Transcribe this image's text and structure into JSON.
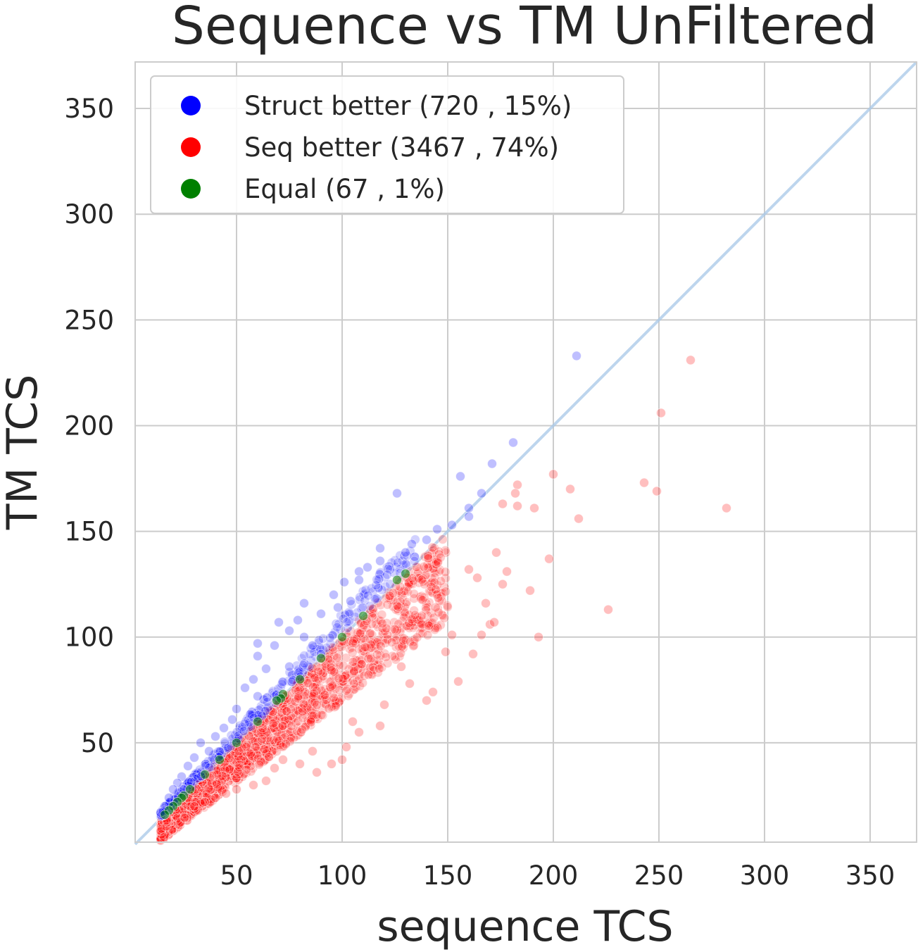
{
  "chart_data": {
    "type": "scatter",
    "title": "Sequence vs TM UnFiltered",
    "xlabel": "sequence TCS",
    "ylabel": "TM TCS",
    "xlim": [
      2,
      372
    ],
    "ylim": [
      3,
      372
    ],
    "xticks": [
      50,
      100,
      150,
      200,
      250,
      300,
      350
    ],
    "yticks": [
      50,
      100,
      150,
      200,
      250,
      300,
      350
    ],
    "grid": true,
    "legend_position": "top-left",
    "diagonal_line": {
      "from": [
        2,
        2
      ],
      "to": [
        372,
        372
      ],
      "color": "#a8c8e8"
    },
    "colors": {
      "struct": "#0000ff",
      "seq": "#ff0000",
      "equal": "#008000"
    },
    "series": [
      {
        "name": "Struct better (720 , 15%)",
        "color": "#0000ff",
        "points": [
          [
            211,
            233
          ],
          [
            181,
            192
          ],
          [
            171,
            182
          ],
          [
            156,
            176
          ],
          [
            126,
            168
          ],
          [
            166,
            168
          ],
          [
            160,
            161
          ],
          [
            160,
            157
          ],
          [
            152,
            153
          ],
          [
            145,
            151
          ],
          [
            140,
            146
          ],
          [
            133,
            144
          ],
          [
            130,
            140
          ],
          [
            118,
            142
          ],
          [
            118,
            136
          ],
          [
            112,
            133
          ],
          [
            108,
            131
          ],
          [
            101,
            126
          ],
          [
            108,
            127
          ],
          [
            96,
            120
          ],
          [
            104,
            117
          ],
          [
            98,
            114
          ],
          [
            82,
            116
          ],
          [
            90,
            111
          ],
          [
            79,
            108
          ],
          [
            70,
            107
          ],
          [
            75,
            103
          ],
          [
            82,
            100
          ],
          [
            60,
            97
          ],
          [
            68,
            96
          ],
          [
            86,
            96
          ],
          [
            90,
            92
          ],
          [
            60,
            91
          ],
          [
            75,
            86
          ],
          [
            64,
            85
          ],
          [
            58,
            80
          ],
          [
            54,
            76
          ],
          [
            60,
            72
          ],
          [
            50,
            66
          ],
          [
            48,
            61
          ],
          [
            44,
            57
          ],
          [
            40,
            53
          ],
          [
            33,
            50
          ],
          [
            37,
            46
          ],
          [
            30,
            43
          ],
          [
            27,
            39
          ],
          [
            24,
            34
          ],
          [
            22,
            31
          ],
          [
            20,
            28
          ],
          [
            18,
            24
          ],
          [
            16,
            20
          ],
          [
            14,
            17
          ]
        ],
        "cloud": {
          "x_range": [
            14,
            135
          ],
          "offset_range": [
            1,
            14
          ],
          "count": 340,
          "alpha": 0.18
        }
      },
      {
        "name": "Seq better (3467 , 74%)",
        "color": "#ff0000",
        "points": [
          [
            265,
            231
          ],
          [
            251,
            206
          ],
          [
            200,
            177
          ],
          [
            183,
            172
          ],
          [
            243,
            173
          ],
          [
            249,
            169
          ],
          [
            208,
            170
          ],
          [
            182,
            168
          ],
          [
            176,
            163
          ],
          [
            183,
            162
          ],
          [
            191,
            161
          ],
          [
            282,
            161
          ],
          [
            212,
            156
          ],
          [
            173,
            140
          ],
          [
            198,
            137
          ],
          [
            178,
            131
          ],
          [
            189,
            122
          ],
          [
            176,
            125
          ],
          [
            160,
            132
          ],
          [
            164,
            128
          ],
          [
            168,
            116
          ],
          [
            170,
            106
          ],
          [
            166,
            101
          ],
          [
            172,
            107
          ],
          [
            152,
            101
          ],
          [
            162,
            92
          ],
          [
            193,
            100
          ],
          [
            226,
            113
          ],
          [
            149,
            93
          ],
          [
            155,
            79
          ],
          [
            128,
            86
          ],
          [
            132,
            78
          ],
          [
            140,
            70
          ],
          [
            143,
            74
          ],
          [
            120,
            68
          ],
          [
            118,
            58
          ],
          [
            105,
            60
          ],
          [
            108,
            55
          ],
          [
            102,
            48
          ],
          [
            100,
            42
          ],
          [
            95,
            40
          ],
          [
            86,
            46
          ],
          [
            88,
            36
          ],
          [
            80,
            40
          ],
          [
            72,
            42
          ],
          [
            68,
            38
          ],
          [
            64,
            32
          ],
          [
            58,
            30
          ],
          [
            50,
            28
          ],
          [
            45,
            26
          ],
          [
            40,
            24
          ],
          [
            35,
            22
          ],
          [
            30,
            20
          ]
        ],
        "cloud": {
          "x_range": [
            14,
            150
          ],
          "offset_range": [
            -42,
            0
          ],
          "count": 1500,
          "alpha": 0.2
        }
      },
      {
        "name": "Equal (67 , 1%)",
        "color": "#008000",
        "points": [
          [
            126,
            127
          ],
          [
            72,
            73
          ],
          [
            71,
            71
          ],
          [
            69,
            70
          ],
          [
            25,
            25
          ],
          [
            24,
            24
          ],
          [
            22,
            22
          ],
          [
            20,
            20
          ],
          [
            18,
            18
          ],
          [
            16,
            16
          ],
          [
            28,
            28
          ],
          [
            35,
            35
          ],
          [
            42,
            42
          ],
          [
            50,
            50
          ],
          [
            60,
            60
          ],
          [
            80,
            80
          ],
          [
            90,
            90
          ],
          [
            100,
            100
          ],
          [
            110,
            110
          ],
          [
            130,
            130
          ]
        ],
        "alpha": 0.55
      }
    ]
  }
}
